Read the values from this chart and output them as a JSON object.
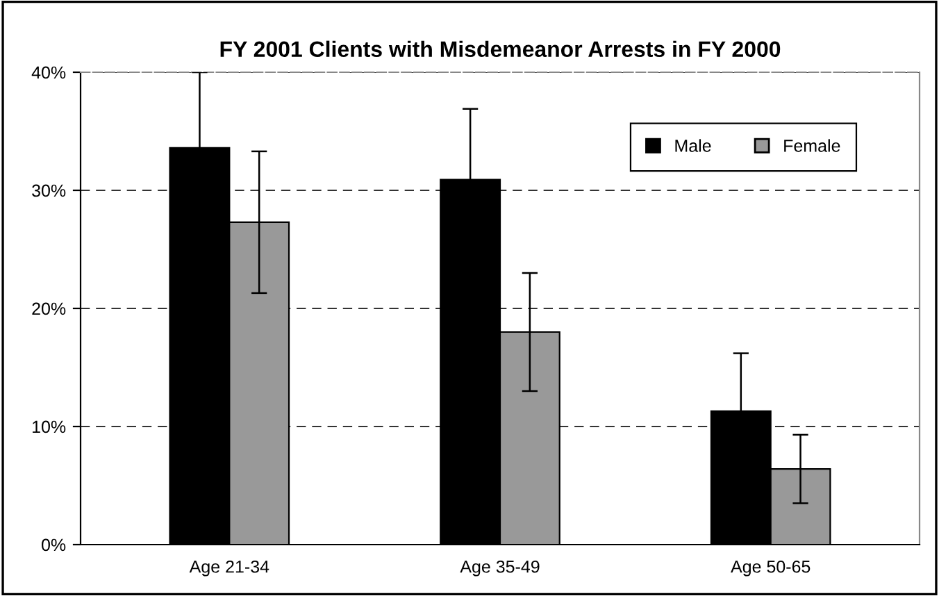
{
  "chart_data": {
    "type": "bar",
    "title": "FY 2001 Clients with Misdemeanor Arrests in FY 2000",
    "categories": [
      "Age 21-34",
      "Age 35-49",
      "Age 50-65"
    ],
    "series": [
      {
        "name": "Male",
        "color": "#000000",
        "values": [
          33.6,
          30.9,
          11.3
        ],
        "errors": [
          6.4,
          6.0,
          4.9
        ]
      },
      {
        "name": "Female",
        "color": "#999999",
        "values": [
          27.3,
          18.0,
          6.4
        ],
        "errors": [
          6.0,
          5.0,
          2.9
        ]
      }
    ],
    "ylim": [
      0,
      40
    ],
    "yticks": [
      {
        "value": 0,
        "label": "0%"
      },
      {
        "value": 10,
        "label": "10%"
      },
      {
        "value": 20,
        "label": "20%"
      },
      {
        "value": 30,
        "label": "30%"
      },
      {
        "value": 40,
        "label": "40%"
      }
    ],
    "grid": "y",
    "legend": "top right"
  }
}
